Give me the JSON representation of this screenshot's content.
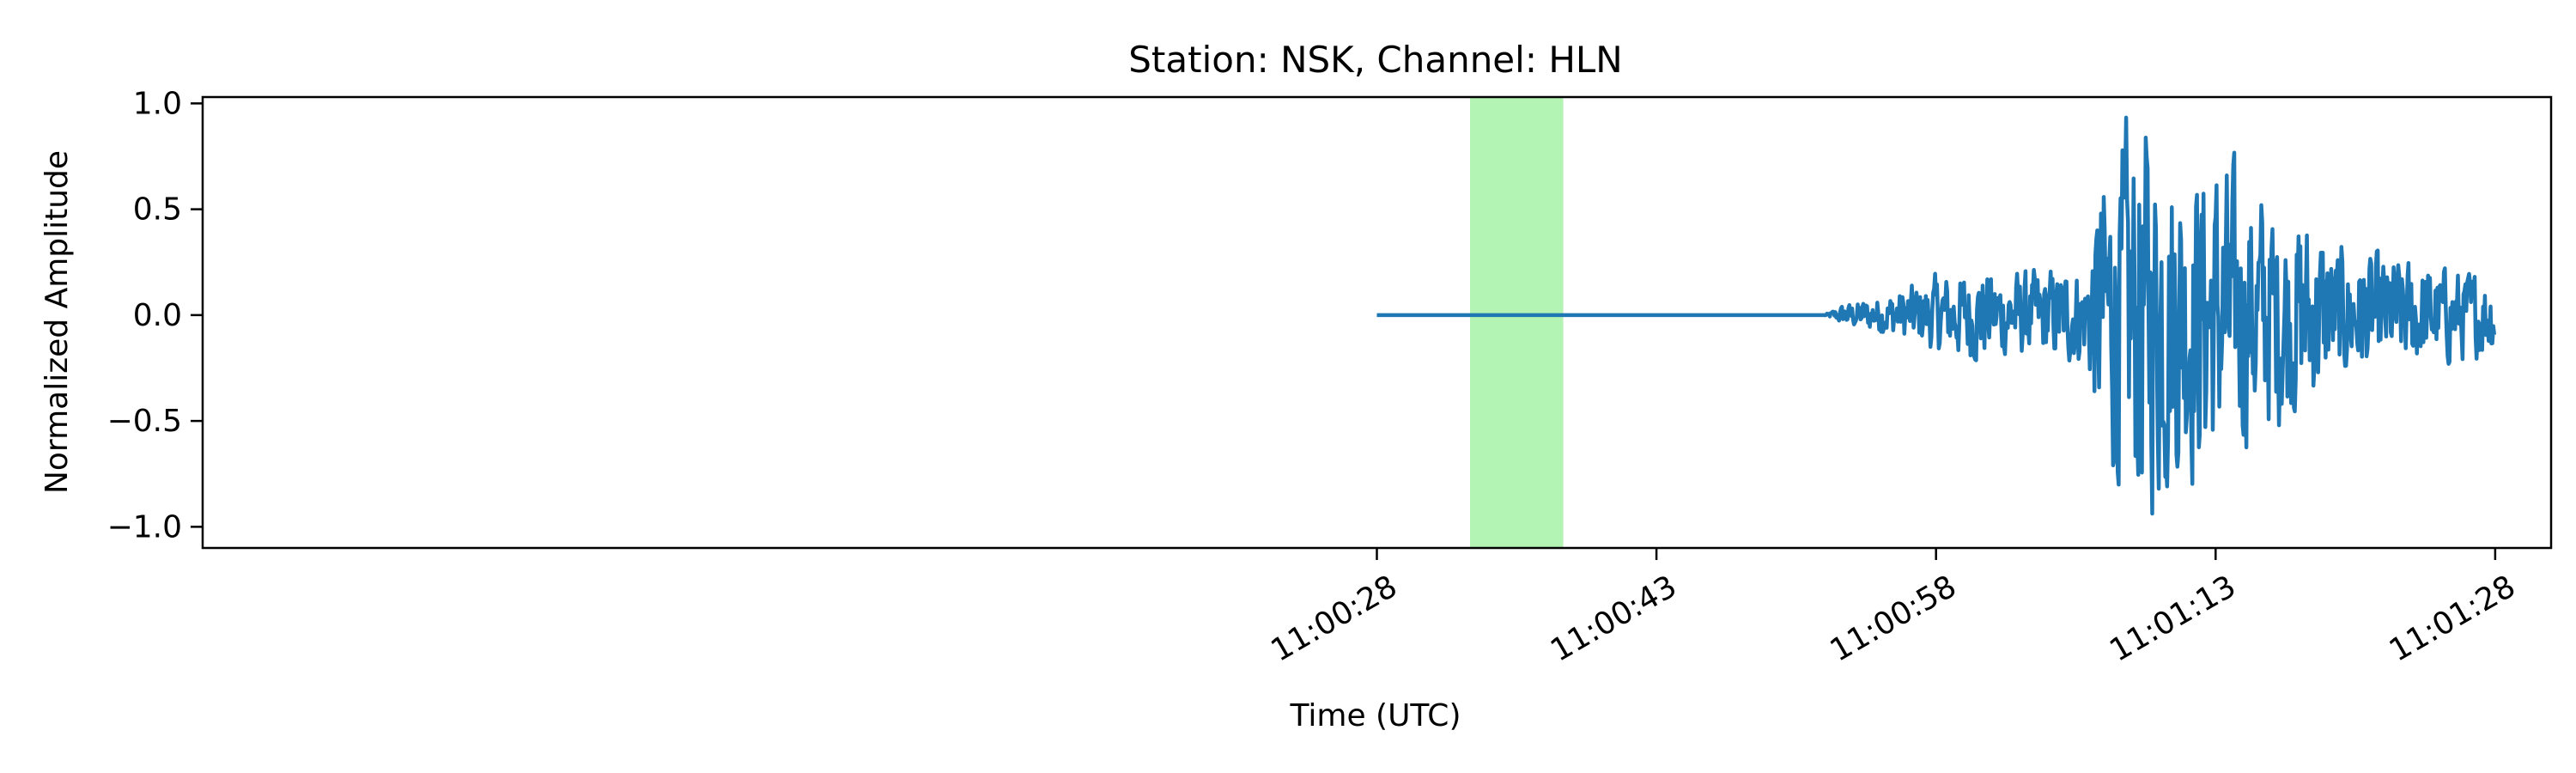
{
  "chart_data": {
    "type": "line",
    "title": "Station: NSK, Channel: HLN",
    "xlabel": "Time (UTC)",
    "ylabel": "Normalized Amplitude",
    "x_ticks": [
      "11:00:28",
      "11:00:43",
      "11:00:58",
      "11:01:13",
      "11:01:28"
    ],
    "y_ticks": [
      "1.0",
      "0.5",
      "0.0",
      "−0.5",
      "−1.0"
    ],
    "xlim": [
      "10:59:25",
      "11:01:31"
    ],
    "ylim": [
      -1.1,
      1.03
    ],
    "grid": false,
    "legend": "none",
    "shaded_region": {
      "x_start": "11:00:33",
      "x_end": "11:00:38",
      "color": "#b3f3b3"
    },
    "series": [
      {
        "color": "#1f77b4",
        "x_start": "11:00:28",
        "x_end": "11:01:28",
        "onset": "11:00:52",
        "y_profile": [
          [
            "11:00:28",
            0.0
          ],
          [
            "11:00:52",
            0.0
          ],
          [
            "11:00:53",
            0.05
          ],
          [
            "11:00:55",
            0.09
          ],
          [
            "11:00:58",
            0.18
          ],
          [
            "11:01:00",
            0.22
          ],
          [
            "11:01:03",
            0.2
          ],
          [
            "11:01:06",
            0.24
          ],
          [
            "11:01:07",
            0.7
          ],
          [
            "11:01:09",
            0.95
          ],
          [
            "11:01:11",
            0.78
          ],
          [
            "11:01:13",
            0.72
          ],
          [
            "11:01:15",
            0.6
          ],
          [
            "11:01:18",
            0.45
          ],
          [
            "11:01:20",
            0.3
          ],
          [
            "11:01:23",
            0.26
          ],
          [
            "11:01:26",
            0.22
          ],
          [
            "11:01:28",
            0.18
          ]
        ]
      }
    ]
  }
}
